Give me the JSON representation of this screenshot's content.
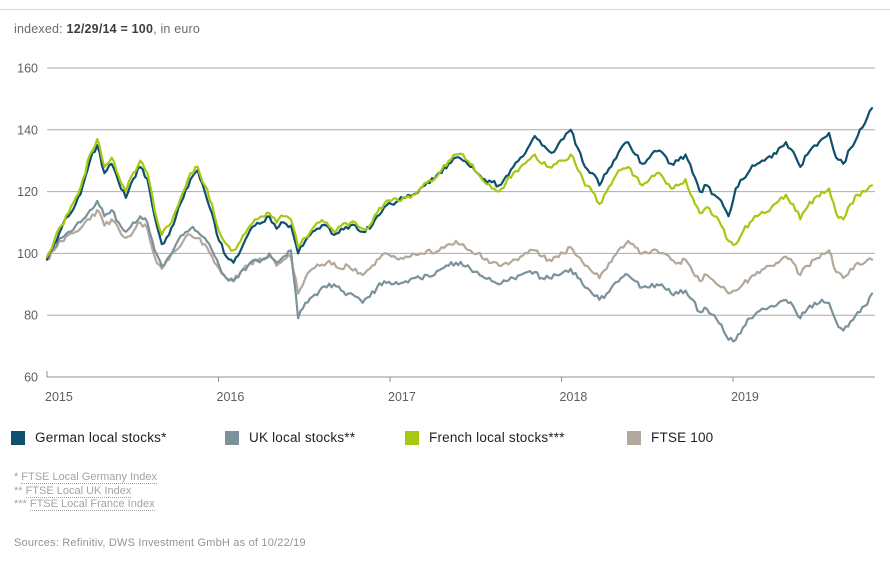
{
  "header": {
    "prefix": "indexed: ",
    "strong": "12/29/14 = 100",
    "suffix": ", in euro"
  },
  "chart_data": {
    "type": "line",
    "title": "indexed: 12/29/14 = 100, in euro",
    "xlabel": "",
    "ylabel": "",
    "ylim": [
      60,
      160
    ],
    "y_ticks": [
      60,
      80,
      100,
      120,
      140,
      160
    ],
    "x_tick_labels": [
      "2015",
      "2016",
      "2017",
      "2018",
      "2019"
    ],
    "xlim_years": [
      2015.0,
      2019.81
    ],
    "x_sampling": "2 points per month, Jan 2015 through Oct 2019 (116 points per series)",
    "grid": "horizontal gridlines on",
    "legend_position": "bottom",
    "draw_order": [
      3,
      1,
      0,
      2
    ],
    "axis_color": "#8f8f8f",
    "grid_color": "#ababab",
    "tick_label_color": "#5f5f5f",
    "series": [
      {
        "name": "German local stocks*",
        "color": "#0f506e",
        "values": [
          98,
          103,
          108,
          112,
          116,
          122,
          130,
          135,
          126,
          129,
          123,
          118,
          124,
          128,
          124,
          112,
          103,
          106,
          112,
          118,
          124,
          127,
          120,
          113,
          104,
          99,
          97,
          101,
          106,
          109,
          110,
          112,
          108,
          110,
          109,
          100,
          104,
          107,
          108,
          109,
          106,
          108,
          108,
          109,
          107,
          108,
          112,
          115,
          116,
          117,
          118,
          119,
          121,
          123,
          124,
          126,
          129,
          131,
          130,
          128,
          126,
          124,
          123,
          122,
          125,
          128,
          131,
          134,
          138,
          135,
          133,
          134,
          137,
          140,
          134,
          128,
          126,
          122,
          126,
          130,
          134,
          136,
          132,
          129,
          131,
          133,
          132,
          129,
          130,
          132,
          126,
          120,
          122,
          119,
          117,
          112,
          121,
          124,
          127,
          129,
          130,
          131,
          134,
          136,
          133,
          128,
          132,
          135,
          137,
          139,
          131,
          129,
          134,
          138,
          142,
          147
        ]
      },
      {
        "name": "UK local stocks**",
        "color": "#7b929d",
        "values": [
          99,
          102,
          105,
          107,
          109,
          111,
          114,
          117,
          112,
          114,
          110,
          107,
          110,
          112,
          110,
          101,
          96,
          99,
          103,
          106,
          108,
          107,
          105,
          101,
          96,
          92,
          91,
          94,
          96,
          98,
          98,
          100,
          97,
          99,
          101,
          79,
          84,
          86,
          88,
          89,
          90,
          88,
          87,
          86,
          84,
          86,
          89,
          91,
          90,
          90,
          91,
          92,
          92,
          93,
          93,
          95,
          96,
          97,
          96,
          95,
          94,
          92,
          91,
          90,
          91,
          92,
          93,
          94,
          94,
          92,
          92,
          93,
          94,
          95,
          92,
          89,
          87,
          85,
          87,
          90,
          92,
          93,
          91,
          89,
          89,
          90,
          89,
          87,
          87,
          88,
          85,
          81,
          82,
          80,
          77,
          72,
          72,
          76,
          79,
          81,
          82,
          83,
          84,
          85,
          83,
          79,
          82,
          84,
          85,
          84,
          78,
          75,
          78,
          81,
          83,
          87
        ]
      },
      {
        "name": "French local stocks***",
        "color": "#a6c813",
        "values": [
          99,
          104,
          109,
          113,
          118,
          124,
          132,
          137,
          128,
          131,
          125,
          120,
          126,
          130,
          126,
          114,
          106,
          109,
          114,
          120,
          126,
          128,
          122,
          116,
          107,
          103,
          101,
          104,
          108,
          111,
          112,
          113,
          110,
          112,
          111,
          102,
          105,
          108,
          110,
          110,
          107,
          109,
          109,
          110,
          108,
          109,
          113,
          116,
          117,
          117,
          118,
          119,
          121,
          123,
          124,
          127,
          130,
          132,
          132,
          129,
          126,
          123,
          121,
          120,
          123,
          126,
          128,
          130,
          132,
          129,
          128,
          129,
          130,
          132,
          127,
          122,
          120,
          116,
          120,
          124,
          127,
          128,
          125,
          122,
          124,
          126,
          124,
          121,
          122,
          124,
          118,
          113,
          115,
          112,
          109,
          104,
          103,
          107,
          110,
          112,
          113,
          115,
          117,
          119,
          116,
          111,
          115,
          118,
          120,
          121,
          113,
          111,
          116,
          119,
          120,
          122
        ]
      },
      {
        "name": "FTSE 100",
        "color": "#b3a89b",
        "values": [
          98,
          101,
          104,
          106,
          107,
          109,
          111,
          114,
          109,
          111,
          108,
          105,
          107,
          110,
          108,
          99,
          95,
          98,
          101,
          104,
          106,
          105,
          103,
          99,
          95,
          92,
          91,
          94,
          96,
          98,
          98,
          99,
          96,
          98,
          99,
          87,
          92,
          95,
          96,
          97,
          97,
          95,
          96,
          95,
          93,
          95,
          98,
          100,
          99,
          98,
          99,
          100,
          100,
          101,
          100,
          102,
          103,
          104,
          103,
          101,
          100,
          98,
          97,
          96,
          97,
          98,
          99,
          100,
          101,
          99,
          98,
          99,
          100,
          102,
          99,
          96,
          94,
          92,
          95,
          99,
          102,
          104,
          102,
          100,
          100,
          101,
          100,
          98,
          97,
          98,
          94,
          91,
          93,
          91,
          89,
          87,
          88,
          90,
          92,
          94,
          95,
          96,
          97,
          99,
          97,
          93,
          96,
          98,
          100,
          101,
          94,
          92,
          95,
          97,
          97,
          98
        ]
      }
    ]
  },
  "footnotes": [
    {
      "marker": "*",
      "text": "FTSE Local Germany Index"
    },
    {
      "marker": "**",
      "text": "FTSE Local UK Index"
    },
    {
      "marker": "***",
      "text": "FTSE Local France Index"
    }
  ],
  "sources": "Sources: Refinitiv, DWS Investment GmbH as of 10/22/19"
}
